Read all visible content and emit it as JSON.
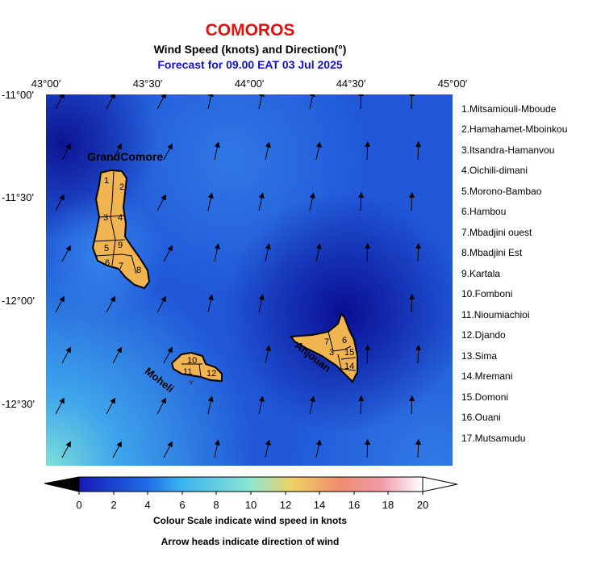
{
  "header": {
    "country": "COMOROS",
    "subtitle": "Wind Speed (knots) and Direction(°)",
    "forecast": "Forecast for  09.00 EAT 03 Jul 2025"
  },
  "axes": {
    "lon_labels": [
      "43°00'",
      "43°30'",
      "44°00'",
      "44°30'",
      "45°00'"
    ],
    "lat_labels": [
      "-11°00'",
      "-11°30'",
      "-12°00'",
      "-12°30'"
    ]
  },
  "islands": {
    "grande_comore": "GrandComore",
    "moheli": "Moheli",
    "anjouan": "Anjouan"
  },
  "district_numbers": {
    "grande_comore": [
      "1",
      "2",
      "3",
      "4",
      "5",
      "9",
      "6",
      "7",
      "8"
    ],
    "moheli": [
      "10",
      "11",
      "12"
    ],
    "anjouan": [
      "7",
      "6",
      "3",
      "15",
      "14"
    ]
  },
  "legend": [
    "1.Mitsamiouli-Mboude",
    "2.Hamahamet-Mboinkou",
    "3.Itsandra-Hamanvou",
    "4.Oichili-dimani",
    "5.Morono-Bambao",
    "6.Hambou",
    "7.Mbadjini ouest",
    "8.Mbadjini Est",
    "9.Kartala",
    "10.Fomboni",
    "11.Nioumiachioi",
    "12.Djando",
    "13.Sima",
    "14.Mremani",
    "15.Domoni",
    "16.Ouani",
    "17.Mutsamudu"
  ],
  "colorbar": {
    "ticks": [
      "0",
      "2",
      "4",
      "6",
      "8",
      "10",
      "12",
      "14",
      "16",
      "18",
      "20"
    ],
    "stops": [
      "#000000",
      "#1818b8",
      "#1e6ee6",
      "#3cb4f0",
      "#8ce6d2",
      "#f0d264",
      "#f08c6e",
      "#f09ca8",
      "#ffffff"
    ]
  },
  "notes": {
    "line1": "Colour Scale indicate wind speed in knots",
    "line2": "Arrow heads indicate direction of wind"
  },
  "colors": {
    "land": "#f0b450",
    "title": "#e01010",
    "forecast": "#1010d0"
  }
}
